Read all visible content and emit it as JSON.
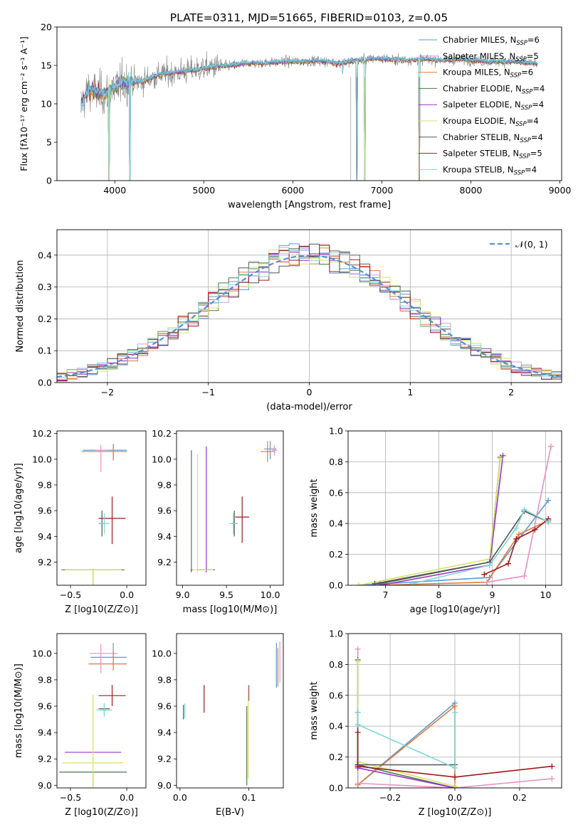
{
  "figure_title": "PLATE=0311, MJD=51665, FIBERID=0103, z=0.05",
  "palette": {
    "chab_miles": "#5b9bd5",
    "salp_miles": "#c6a0e0",
    "krou_miles": "#e07b39",
    "chab_elodie": "#4a7a4a",
    "salp_elodie": "#9b30c8",
    "krou_elodie": "#d4e26a",
    "chab_stelib": "#555555",
    "salp_stelib": "#a01818",
    "krou_stelib": "#7fd6d6",
    "pink": "#e890c0",
    "gaussian": "#5b8bd5",
    "grid": "#b0b0b0"
  },
  "chart_data": [
    {
      "id": "spectrum",
      "type": "line",
      "title": "PLATE=0311, MJD=51665, FIBERID=0103, z=0.05",
      "xlabel": "wavelength [Angstrom, rest frame]",
      "ylabel": "Flux [fλ10⁻¹⁷ erg cm⁻² s⁻¹ A⁻¹]",
      "xlim": [
        3350,
        9020
      ],
      "ylim": [
        0,
        20
      ],
      "xticks": [
        4000,
        5000,
        6000,
        7000,
        8000,
        9000
      ],
      "yticks": [
        0,
        5,
        10,
        15,
        20
      ],
      "grid": false,
      "legend_position": "right",
      "legend": [
        {
          "label": "Chabrier MILES, N",
          "sub": "SSP",
          "tail": "=6",
          "color": "chab_miles"
        },
        {
          "label": "Salpeter MILES, N",
          "sub": "SSP",
          "tail": "=5",
          "color": "salp_miles"
        },
        {
          "label": "Kroupa MILES, N",
          "sub": "SSP",
          "tail": "=6",
          "color": "krou_miles"
        },
        {
          "label": "Chabrier ELODIE, N",
          "sub": "SSP",
          "tail": "=4",
          "color": "chab_elodie"
        },
        {
          "label": "Salpeter ELODIE, N",
          "sub": "SSP",
          "tail": "=4",
          "color": "salp_elodie"
        },
        {
          "label": "Kroupa ELODIE, N",
          "sub": "SSP",
          "tail": "=4",
          "color": "krou_elodie"
        },
        {
          "label": "Chabrier STELIB, N",
          "sub": "SSP",
          "tail": "=4",
          "color": "chab_stelib"
        },
        {
          "label": "Salpeter STELIB, N",
          "sub": "SSP",
          "tail": "=5",
          "color": "salp_stelib"
        },
        {
          "label": "Kroupa STELIB, N",
          "sub": "SSP",
          "tail": "=4",
          "color": "krou_stelib"
        }
      ],
      "continuum": [
        [
          3620,
          9.8
        ],
        [
          3700,
          11.8
        ],
        [
          3800,
          11.5
        ],
        [
          3900,
          11.2
        ],
        [
          4000,
          12.2
        ],
        [
          4100,
          12.8
        ],
        [
          4200,
          12.8
        ],
        [
          4300,
          12.9
        ],
        [
          4500,
          13.8
        ],
        [
          4700,
          14.1
        ],
        [
          4900,
          14.4
        ],
        [
          5100,
          14.8
        ],
        [
          5300,
          15.0
        ],
        [
          5500,
          15.3
        ],
        [
          5700,
          15.3
        ],
        [
          5900,
          15.5
        ],
        [
          6100,
          15.5
        ],
        [
          6300,
          15.6
        ],
        [
          6500,
          15.3
        ],
        [
          6700,
          15.6
        ],
        [
          6900,
          15.9
        ],
        [
          7100,
          15.8
        ],
        [
          7300,
          15.7
        ],
        [
          7500,
          15.8
        ],
        [
          7700,
          15.7
        ],
        [
          7900,
          15.8
        ],
        [
          8100,
          15.6
        ],
        [
          8300,
          15.5
        ],
        [
          8500,
          15.5
        ],
        [
          8750,
          15.2
        ]
      ],
      "dips": [
        [
          3935,
          0
        ],
        [
          4170,
          0
        ],
        [
          6560,
          13.9
        ],
        [
          6720,
          0
        ],
        [
          6810,
          0
        ],
        [
          7420,
          0
        ]
      ]
    },
    {
      "id": "residuals",
      "type": "line",
      "xlabel": "(data-model)/error",
      "ylabel": "Normed distribution",
      "xlim": [
        -2.5,
        2.5
      ],
      "ylim": [
        0,
        0.48
      ],
      "xticks": [
        -2,
        -1,
        0,
        1,
        2
      ],
      "yticks": [
        0.0,
        0.1,
        0.2,
        0.3,
        0.4
      ],
      "grid": true,
      "legend_position": "top-right",
      "gaussian_label": "𝒩(0, 1)",
      "bin_width": 0.1
    },
    {
      "id": "age_vs_Z",
      "type": "scatter",
      "xlabel": "Z [log10(Z/Z⊙)]",
      "ylabel": "age  [log10(age/yr)]",
      "xlim": [
        -0.62,
        0.17
      ],
      "ylim": [
        9.02,
        10.22
      ],
      "xticks": [
        -0.5,
        0.0
      ],
      "yticks": [
        9.2,
        9.4,
        9.6,
        9.8,
        10.0,
        10.2
      ],
      "grid": false,
      "points": [
        {
          "x": -0.12,
          "y": 10.07,
          "xerr": [
            0.27,
            0.12
          ],
          "yerr": [
            0.06,
            0.05
          ],
          "color": "chab_miles"
        },
        {
          "x": -0.12,
          "y": 10.06,
          "xerr": [
            0.28,
            0.12
          ],
          "yerr": [
            0.07,
            0.05
          ],
          "color": "krou_miles"
        },
        {
          "x": -0.23,
          "y": 10.07,
          "xerr": [
            0.05,
            0.05
          ],
          "yerr": [
            0.17,
            0.04
          ],
          "color": "pink"
        },
        {
          "x": -0.3,
          "y": 9.14,
          "xerr": [
            0.28,
            0.28
          ],
          "yerr": [
            0.92,
            0.01
          ],
          "color": "chab_elodie"
        },
        {
          "x": -0.3,
          "y": 9.14,
          "xerr": [
            0.25,
            0.25
          ],
          "yerr": [
            0.9,
            0.01
          ],
          "color": "krou_elodie"
        },
        {
          "x": -0.13,
          "y": 9.54,
          "xerr": [
            0.12,
            0.12
          ],
          "yerr": [
            0.2,
            0.17
          ],
          "color": "salp_stelib"
        },
        {
          "x": -0.22,
          "y": 9.5,
          "xerr": [
            0.03,
            0.03
          ],
          "yerr": [
            0.1,
            0.1
          ],
          "color": "chab_stelib"
        },
        {
          "x": -0.2,
          "y": 9.5,
          "xerr": [
            0.05,
            0.05
          ],
          "yerr": [
            0.08,
            0.08
          ],
          "color": "krou_stelib"
        }
      ]
    },
    {
      "id": "age_vs_mass",
      "type": "scatter",
      "xlabel": "mass [log10(M/M⊙)]",
      "ylabel": "",
      "xlim": [
        8.93,
        10.15
      ],
      "ylim": [
        9.02,
        10.22
      ],
      "xticks": [
        9.0,
        9.5,
        10.0
      ],
      "yticks": [
        9.2,
        9.4,
        9.6,
        9.8,
        10.0,
        10.2
      ],
      "grid": false,
      "points": [
        {
          "x": 10.0,
          "y": 10.08,
          "xerr": [
            0.07,
            0.07
          ],
          "yerr": [
            0.08,
            0.06
          ],
          "color": "chab_miles"
        },
        {
          "x": 9.97,
          "y": 10.06,
          "xerr": [
            0.08,
            0.08
          ],
          "yerr": [
            0.08,
            0.08
          ],
          "color": "krou_miles"
        },
        {
          "x": 10.05,
          "y": 10.07,
          "xerr": [
            0.03,
            0.03
          ],
          "yerr": [
            0.04,
            0.04
          ],
          "color": "pink"
        },
        {
          "x": 9.1,
          "y": 9.14,
          "xerr": [
            0.01,
            0.01
          ],
          "yerr": [
            0.02,
            0.93
          ],
          "color": "chab_elodie"
        },
        {
          "x": 9.27,
          "y": 9.14,
          "xerr": [
            0.1,
            0.1
          ],
          "yerr": [
            0.02,
            0.96
          ],
          "color": "salp_elodie"
        },
        {
          "x": 9.17,
          "y": 9.14,
          "xerr": [
            0.06,
            0.18
          ],
          "yerr": [
            0.02,
            0.9
          ],
          "color": "krou_elodie"
        },
        {
          "x": 9.68,
          "y": 9.55,
          "xerr": [
            0.08,
            0.08
          ],
          "yerr": [
            0.2,
            0.16
          ],
          "color": "salp_stelib"
        },
        {
          "x": 9.59,
          "y": 9.5,
          "xerr": [
            0.03,
            0.03
          ],
          "yerr": [
            0.1,
            0.1
          ],
          "color": "chab_stelib"
        },
        {
          "x": 9.58,
          "y": 9.5,
          "xerr": [
            0.05,
            0.05
          ],
          "yerr": [
            0.08,
            0.08
          ],
          "color": "krou_stelib"
        }
      ]
    },
    {
      "id": "weight_vs_age",
      "type": "line",
      "xlabel": "age  [log10(age/yr)]",
      "ylabel": "mass weight",
      "xlim": [
        6.3,
        10.3
      ],
      "ylim": [
        0,
        1.0
      ],
      "xticks": [
        7,
        8,
        9,
        10
      ],
      "yticks": [
        0.0,
        0.2,
        0.4,
        0.6,
        0.8,
        1.0
      ],
      "grid": true,
      "series": [
        {
          "color": "chab_miles",
          "x": [
            6.5,
            8.95,
            10.05
          ],
          "y": [
            0.0,
            0.05,
            0.55
          ]
        },
        {
          "color": "krou_miles",
          "x": [
            6.9,
            8.9,
            9.5,
            10.05
          ],
          "y": [
            0.0,
            0.02,
            0.33,
            0.42
          ]
        },
        {
          "color": "pink",
          "x": [
            8.9,
            9.6,
            10.1
          ],
          "y": [
            0.02,
            0.06,
            0.9
          ]
        },
        {
          "color": "chab_elodie",
          "x": [
            6.9,
            8.95,
            9.15
          ],
          "y": [
            0.01,
            0.15,
            0.83
          ]
        },
        {
          "color": "salp_elodie",
          "x": [
            6.9,
            8.95,
            9.2
          ],
          "y": [
            0.0,
            0.13,
            0.84
          ]
        },
        {
          "color": "krou_elodie",
          "x": [
            6.5,
            8.95,
            9.15
          ],
          "y": [
            0.0,
            0.17,
            0.82
          ]
        },
        {
          "color": "chab_stelib",
          "x": [
            6.8,
            8.95,
            9.6,
            10.05
          ],
          "y": [
            0.01,
            0.15,
            0.48,
            0.41
          ]
        },
        {
          "color": "salp_stelib",
          "x": [
            8.85,
            9.3,
            9.45,
            9.8,
            10.05
          ],
          "y": [
            0.07,
            0.14,
            0.3,
            0.36,
            0.43
          ]
        },
        {
          "color": "krou_stelib",
          "x": [
            7.5,
            8.95,
            9.45,
            9.6,
            10.05
          ],
          "y": [
            0.01,
            0.13,
            0.37,
            0.49,
            0.41
          ]
        }
      ]
    },
    {
      "id": "mass_vs_Z",
      "type": "scatter",
      "xlabel": "Z [log10(Z/Z⊙)]",
      "ylabel": "mass [log10(M/M⊙)]",
      "xlim": [
        -0.62,
        0.17
      ],
      "ylim": [
        8.98,
        10.15
      ],
      "xticks": [
        -0.5,
        0.0
      ],
      "yticks": [
        9.0,
        9.2,
        9.4,
        9.6,
        9.8,
        10.0
      ],
      "grid": false,
      "points": [
        {
          "x": -0.12,
          "y": 9.97,
          "xerr": [
            0.2,
            0.12
          ],
          "yerr": [
            0.06,
            0.11
          ],
          "color": "chab_miles"
        },
        {
          "x": -0.12,
          "y": 9.92,
          "xerr": [
            0.22,
            0.12
          ],
          "yerr": [
            0.05,
            0.1
          ],
          "color": "krou_miles"
        },
        {
          "x": -0.23,
          "y": 10.0,
          "xerr": [
            0.1,
            0.15
          ],
          "yerr": [
            0.15,
            0.07
          ],
          "color": "pink"
        },
        {
          "x": -0.3,
          "y": 9.1,
          "xerr": [
            0.3,
            0.3
          ],
          "yerr": [
            0.1,
            0.0
          ],
          "color": "chab_elodie"
        },
        {
          "x": -0.3,
          "y": 9.25,
          "xerr": [
            0.25,
            0.25
          ],
          "yerr": [
            0.0,
            0.0
          ],
          "color": "salp_elodie"
        },
        {
          "x": -0.3,
          "y": 9.17,
          "xerr": [
            0.27,
            0.27
          ],
          "yerr": [
            0.2,
            0.52
          ],
          "color": "krou_elodie"
        },
        {
          "x": -0.13,
          "y": 9.68,
          "xerr": [
            0.12,
            0.12
          ],
          "yerr": [
            0.08,
            0.08
          ],
          "color": "salp_stelib"
        },
        {
          "x": -0.2,
          "y": 9.58,
          "xerr": [
            0.05,
            0.05
          ],
          "yerr": [
            0.04,
            0.04
          ],
          "color": "chab_stelib"
        },
        {
          "x": -0.2,
          "y": 9.57,
          "xerr": [
            0.07,
            0.07
          ],
          "yerr": [
            0.05,
            0.05
          ],
          "color": "krou_stelib"
        }
      ]
    },
    {
      "id": "mass_vs_EBV",
      "type": "scatter",
      "xlabel": "E(B-V)",
      "ylabel": "",
      "xlim": [
        -0.005,
        0.15
      ],
      "ylim": [
        8.98,
        10.15
      ],
      "xticks": [
        0.0,
        0.1
      ],
      "yticks": [
        9.0,
        9.2,
        9.4,
        9.6,
        9.8,
        10.0
      ],
      "grid": false,
      "points": [
        {
          "x": 0.14,
          "y": 9.92,
          "xerr": [
            0,
            0
          ],
          "yerr": [
            0.18,
            0.16
          ],
          "color": "chab_miles"
        },
        {
          "x": 0.142,
          "y": 9.9,
          "xerr": [
            0,
            0
          ],
          "yerr": [
            0.15,
            0.14
          ],
          "color": "krou_miles"
        },
        {
          "x": 0.145,
          "y": 9.92,
          "xerr": [
            0,
            0
          ],
          "yerr": [
            0.14,
            0.17
          ],
          "color": "pink"
        },
        {
          "x": 0.097,
          "y": 9.3,
          "xerr": [
            0,
            0
          ],
          "yerr": [
            0.3,
            0.3
          ],
          "color": "chab_elodie"
        },
        {
          "x": 0.1,
          "y": 9.7,
          "xerr": [
            0,
            0
          ],
          "yerr": [
            0.06,
            0.06
          ],
          "color": "salp_elodie"
        },
        {
          "x": 0.099,
          "y": 9.4,
          "xerr": [
            0,
            0
          ],
          "yerr": [
            0.35,
            0.34
          ],
          "color": "krou_elodie"
        },
        {
          "x": 0.035,
          "y": 9.66,
          "xerr": [
            0,
            0
          ],
          "yerr": [
            0.11,
            0.1
          ],
          "color": "salp_stelib"
        },
        {
          "x": 0.005,
          "y": 9.56,
          "xerr": [
            0,
            0
          ],
          "yerr": [
            0.06,
            0.05
          ],
          "color": "chab_stelib"
        },
        {
          "x": 0.007,
          "y": 9.56,
          "xerr": [
            0,
            0
          ],
          "yerr": [
            0.05,
            0.06
          ],
          "color": "krou_stelib"
        }
      ]
    },
    {
      "id": "weight_vs_Z",
      "type": "line",
      "xlabel": "Z [log10(Z/Z⊙)]",
      "ylabel": "mass weight",
      "xlim": [
        -0.33,
        0.33
      ],
      "ylim": [
        0,
        1.0
      ],
      "xticks": [
        -0.2,
        0.0,
        0.2
      ],
      "yticks": [
        0.0,
        0.2,
        0.4,
        0.6,
        0.8,
        1.0
      ],
      "grid": true,
      "series": [
        {
          "color": "chab_miles",
          "x": [
            -0.3,
            0.0
          ],
          "y": [
            0.02,
            0.55
          ]
        },
        {
          "color": "krou_miles",
          "x": [
            -0.3,
            0.0,
            0.0
          ],
          "y": [
            0.02,
            0.53,
            0.01
          ]
        },
        {
          "color": "pink",
          "x": [
            -0.3,
            -0.3,
            0.0,
            0.3
          ],
          "y": [
            0.9,
            0.03,
            0.0,
            0.06
          ]
        },
        {
          "color": "chab_elodie",
          "x": [
            -0.3,
            -0.3,
            0.0
          ],
          "y": [
            0.83,
            0.15,
            0.0
          ]
        },
        {
          "color": "salp_elodie",
          "x": [
            -0.3,
            0.0
          ],
          "y": [
            0.13,
            0.0
          ]
        },
        {
          "color": "krou_elodie",
          "x": [
            -0.3,
            -0.3,
            0.0
          ],
          "y": [
            0.82,
            0.17,
            0.01
          ]
        },
        {
          "color": "chab_stelib",
          "x": [
            -0.3,
            -0.3,
            0.0
          ],
          "y": [
            0.49,
            0.15,
            0.15
          ]
        },
        {
          "color": "salp_stelib",
          "x": [
            -0.3,
            -0.3,
            0.0,
            0.3
          ],
          "y": [
            0.36,
            0.14,
            0.07,
            0.14
          ]
        },
        {
          "color": "krou_stelib",
          "x": [
            -0.3,
            -0.3,
            0.0,
            0.0
          ],
          "y": [
            0.49,
            0.41,
            0.13,
            0.49
          ]
        }
      ]
    }
  ]
}
